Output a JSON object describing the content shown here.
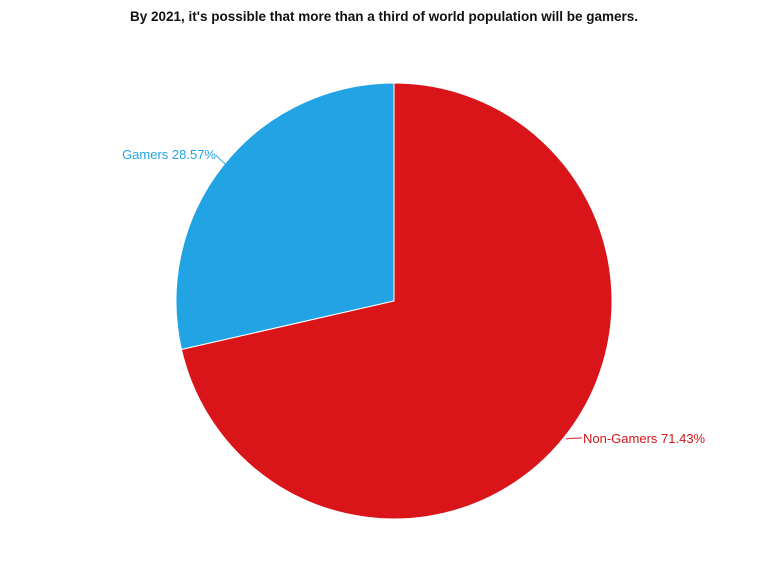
{
  "chart_data": {
    "type": "pie",
    "title": "By 2021, it's possible that more than a third of world population will be gamers.",
    "slices": [
      {
        "name": "Gamers",
        "value": 28.57,
        "label": "Gamers 28.57%",
        "color": "#22a3e3"
      },
      {
        "name": "Non-Gamers",
        "value": 71.43,
        "label": "Non-Gamers 71.43%",
        "color": "#d91519"
      }
    ],
    "start_angle": "12 o'clock",
    "legend": "none"
  }
}
